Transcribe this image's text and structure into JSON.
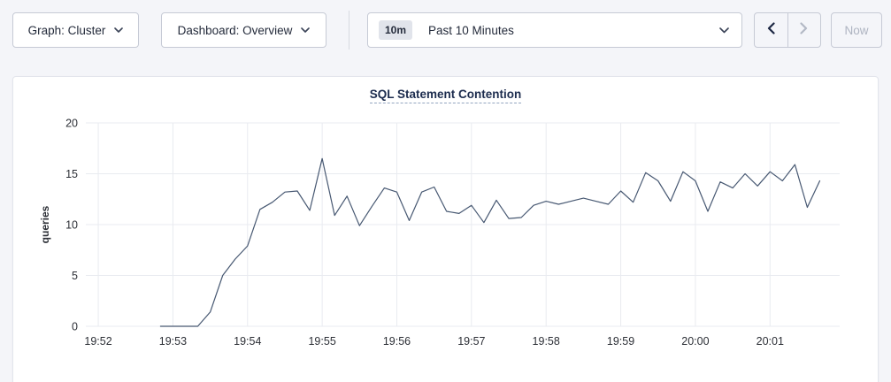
{
  "toolbar": {
    "graph_dropdown_label": "Graph: Cluster",
    "dashboard_dropdown_label": "Dashboard: Overview",
    "time_range": {
      "badge": "10m",
      "label": "Past 10 Minutes"
    },
    "prev_button_icon": "chevron-left",
    "next_button_icon": "chevron-right",
    "now_button_label": "Now"
  },
  "chart_data": {
    "type": "line",
    "title": "SQL Statement Contention",
    "ylabel": "queries",
    "ylim": [
      0,
      20
    ],
    "yticks": [
      0,
      5,
      10,
      15,
      20
    ],
    "xticks": [
      "19:52",
      "19:53",
      "19:54",
      "19:55",
      "19:56",
      "19:57",
      "19:58",
      "19:59",
      "20:00",
      "20:01"
    ],
    "x_domain": [
      "19:51:50",
      "20:01:56"
    ],
    "grid": true,
    "legend": "none",
    "line_color": "#475872",
    "series": [
      {
        "name": "queries",
        "points": [
          [
            "19:52:50",
            0
          ],
          [
            "19:53:00",
            0
          ],
          [
            "19:53:10",
            0
          ],
          [
            "19:53:20",
            0
          ],
          [
            "19:53:30",
            1.4
          ],
          [
            "19:53:40",
            5.0
          ],
          [
            "19:53:50",
            6.6
          ],
          [
            "19:54:00",
            7.9
          ],
          [
            "19:54:10",
            11.5
          ],
          [
            "19:54:20",
            12.2
          ],
          [
            "19:54:30",
            13.2
          ],
          [
            "19:54:40",
            13.3
          ],
          [
            "19:54:50",
            11.4
          ],
          [
            "19:55:00",
            16.5
          ],
          [
            "19:55:10",
            10.9
          ],
          [
            "19:55:20",
            12.8
          ],
          [
            "19:55:30",
            9.9
          ],
          [
            "19:55:40",
            11.8
          ],
          [
            "19:55:50",
            13.6
          ],
          [
            "19:56:00",
            13.2
          ],
          [
            "19:56:10",
            10.4
          ],
          [
            "19:56:20",
            13.2
          ],
          [
            "19:56:30",
            13.7
          ],
          [
            "19:56:40",
            11.3
          ],
          [
            "19:56:50",
            11.1
          ],
          [
            "19:57:00",
            11.9
          ],
          [
            "19:57:10",
            10.2
          ],
          [
            "19:57:20",
            12.4
          ],
          [
            "19:57:30",
            10.6
          ],
          [
            "19:57:40",
            10.7
          ],
          [
            "19:57:50",
            11.9
          ],
          [
            "19:58:00",
            12.3
          ],
          [
            "19:58:10",
            12.0
          ],
          [
            "19:58:20",
            12.3
          ],
          [
            "19:58:30",
            12.6
          ],
          [
            "19:58:40",
            12.3
          ],
          [
            "19:58:50",
            12.0
          ],
          [
            "19:59:00",
            13.3
          ],
          [
            "19:59:10",
            12.2
          ],
          [
            "19:59:20",
            15.1
          ],
          [
            "19:59:30",
            14.3
          ],
          [
            "19:59:40",
            12.3
          ],
          [
            "19:59:50",
            15.2
          ],
          [
            "20:00:00",
            14.3
          ],
          [
            "20:00:10",
            11.3
          ],
          [
            "20:00:20",
            14.2
          ],
          [
            "20:00:30",
            13.6
          ],
          [
            "20:00:40",
            15.0
          ],
          [
            "20:00:50",
            13.8
          ],
          [
            "20:01:00",
            15.2
          ],
          [
            "20:01:10",
            14.3
          ],
          [
            "20:01:20",
            15.9
          ],
          [
            "20:01:30",
            11.7
          ],
          [
            "20:01:40",
            14.3
          ]
        ]
      }
    ]
  },
  "colors": {
    "page_background": "#f4f5f9",
    "panel_background": "#ffffff",
    "control_border": "#c6cad5",
    "grid_line": "#e9ebf0",
    "axis_text": "#2c2f36",
    "title_text": "#1c2c4e",
    "enabled_arrow": "#1c2743",
    "disabled_text": "#aeb4c1",
    "badge_background": "#e1e4eb"
  }
}
